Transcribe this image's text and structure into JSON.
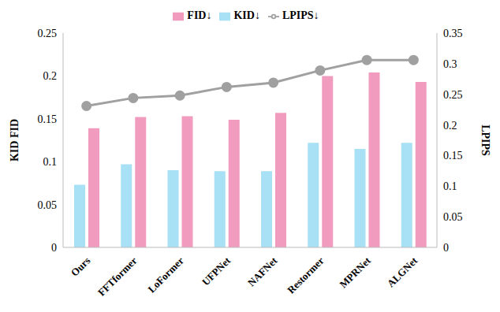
{
  "chart_data": {
    "type": "bar",
    "categories": [
      "Ours",
      "FFTformer",
      "LoFormer",
      "UFPNet",
      "NAFNet",
      "Restormer",
      "MPRNet",
      "ALGNet"
    ],
    "y_label": "KID FID",
    "y2_label": "LPIPS",
    "ylim": [
      0,
      0.25
    ],
    "yticks": [
      0,
      0.05,
      0.1,
      0.15,
      0.2,
      0.25
    ],
    "y2lim": [
      0,
      0.35
    ],
    "y2ticks": [
      0,
      0.05,
      0.1,
      0.15,
      0.2,
      0.25,
      0.3,
      0.35
    ],
    "legend": "top",
    "grid": false,
    "series": [
      {
        "name": "KID↓",
        "type": "bar",
        "color": "#a8e0f6",
        "values": [
          0.073,
          0.097,
          0.09,
          0.089,
          0.089,
          0.122,
          0.115,
          0.122
        ]
      },
      {
        "name": "FID↓",
        "type": "bar",
        "color": "#f19cbe",
        "values": [
          0.139,
          0.152,
          0.153,
          0.149,
          0.157,
          0.2,
          0.204,
          0.193
        ]
      },
      {
        "name": "LPIPS↓",
        "type": "line",
        "axis": "y2",
        "color": "#a0a0a0",
        "marker": "circle",
        "line_style": "solid",
        "values": [
          0.231,
          0.244,
          0.248,
          0.262,
          0.269,
          0.289,
          0.306,
          0.306
        ]
      }
    ]
  }
}
